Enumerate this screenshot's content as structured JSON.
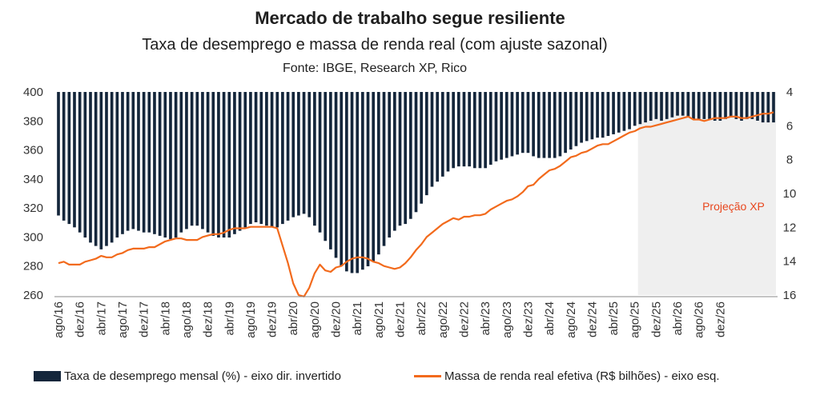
{
  "title": "Mercado de trabalho segue resiliente",
  "subtitle": "Taxa de desemprego e massa de renda real (com ajuste sazonal)",
  "source": "Fonte: IBGE, Research XP, Rico",
  "projection_label": "Projeção XP",
  "legend": {
    "bars": "Taxa de desemprego mensal (%) - eixo dir. invertido",
    "line": "Massa de renda real efetiva (R$ bilhões) - eixo esq."
  },
  "colors": {
    "bars": "#14263b",
    "line": "#f26a1c",
    "projection_fill": "#efefef",
    "projection_text": "#e8471e"
  },
  "chart_data": {
    "type": "bar+line",
    "x_start": "ago/16",
    "x_tick_labels": [
      "ago/16",
      "dez/16",
      "abr/17",
      "ago/17",
      "dez/17",
      "abr/18",
      "ago/18",
      "dez/18",
      "abr/19",
      "ago/19",
      "dez/19",
      "abr/20",
      "ago/20",
      "dez/20",
      "abr/21",
      "ago/21",
      "dez/21",
      "abr/22",
      "ago/22",
      "dez/22",
      "abr/23",
      "ago/23",
      "dez/23",
      "abr/24",
      "ago/24",
      "dez/24",
      "abr/25",
      "ago/25",
      "dez/25",
      "abr/26",
      "ago/26",
      "dez/26"
    ],
    "y_left": {
      "min": 260,
      "max": 400,
      "ticks": [
        260,
        280,
        300,
        320,
        340,
        360,
        380,
        400
      ]
    },
    "y_right": {
      "min": 4,
      "max": 16,
      "inverted": true,
      "ticks": [
        4,
        6,
        8,
        10,
        12,
        14,
        16
      ]
    },
    "projection_start": "ago/25",
    "unemployment_rate": [
      11.3,
      11.6,
      11.8,
      12.0,
      12.3,
      12.6,
      12.9,
      13.1,
      13.3,
      13.1,
      12.9,
      12.6,
      12.4,
      12.2,
      12.1,
      12.2,
      12.3,
      12.3,
      12.4,
      12.5,
      12.6,
      12.7,
      12.6,
      12.3,
      12.1,
      11.9,
      11.9,
      12.1,
      12.3,
      12.5,
      12.6,
      12.6,
      12.6,
      12.4,
      12.2,
      12.0,
      11.8,
      11.7,
      11.8,
      11.9,
      12.0,
      12.0,
      11.8,
      11.6,
      11.4,
      11.3,
      11.2,
      11.4,
      11.9,
      12.3,
      12.8,
      13.3,
      13.8,
      14.3,
      14.6,
      14.7,
      14.7,
      14.5,
      14.3,
      14.0,
      13.6,
      13.1,
      12.6,
      12.2,
      11.9,
      11.8,
      11.5,
      11.1,
      10.6,
      10.1,
      9.6,
      9.3,
      9.0,
      8.7,
      8.5,
      8.4,
      8.4,
      8.4,
      8.5,
      8.5,
      8.5,
      8.3,
      8.1,
      8.0,
      7.9,
      7.8,
      7.7,
      7.6,
      7.6,
      7.8,
      7.9,
      7.9,
      7.9,
      7.9,
      7.8,
      7.6,
      7.4,
      7.2,
      7.0,
      6.9,
      6.8,
      6.7,
      6.7,
      6.6,
      6.5,
      6.4,
      6.3,
      6.2,
      6.0,
      5.9,
      5.8,
      5.7,
      5.6,
      5.7,
      5.6,
      5.5,
      5.4,
      5.4,
      5.5,
      5.6,
      5.6,
      5.6,
      5.6,
      5.7,
      5.7,
      5.6,
      5.5,
      5.6,
      5.7,
      5.6,
      5.6,
      5.7,
      5.8,
      5.8,
      5.8
    ],
    "real_income_mass": [
      282,
      283,
      281,
      281,
      281,
      283,
      284,
      285,
      287,
      286,
      286,
      288,
      289,
      291,
      292,
      292,
      292,
      293,
      293,
      295,
      297,
      298,
      299,
      299,
      298,
      298,
      298,
      300,
      301,
      302,
      302,
      303,
      305,
      306,
      306,
      306,
      307,
      307,
      307,
      307,
      307,
      306,
      294,
      282,
      268,
      260,
      259,
      265,
      275,
      281,
      277,
      276,
      279,
      280,
      283,
      285,
      286,
      286,
      285,
      283,
      282,
      280,
      279,
      278,
      279,
      282,
      286,
      291,
      295,
      300,
      303,
      306,
      309,
      311,
      313,
      312,
      314,
      314,
      315,
      315,
      316,
      319,
      321,
      323,
      325,
      326,
      328,
      331,
      335,
      336,
      340,
      343,
      346,
      347,
      349,
      352,
      355,
      356,
      358,
      359,
      361,
      363,
      364,
      364,
      366,
      368,
      370,
      372,
      373,
      375,
      376,
      376,
      377,
      378,
      379,
      380,
      381,
      382,
      383,
      381,
      381,
      380,
      381,
      382,
      382,
      382,
      383,
      383,
      382,
      382,
      383,
      384,
      385,
      385,
      386
    ]
  }
}
